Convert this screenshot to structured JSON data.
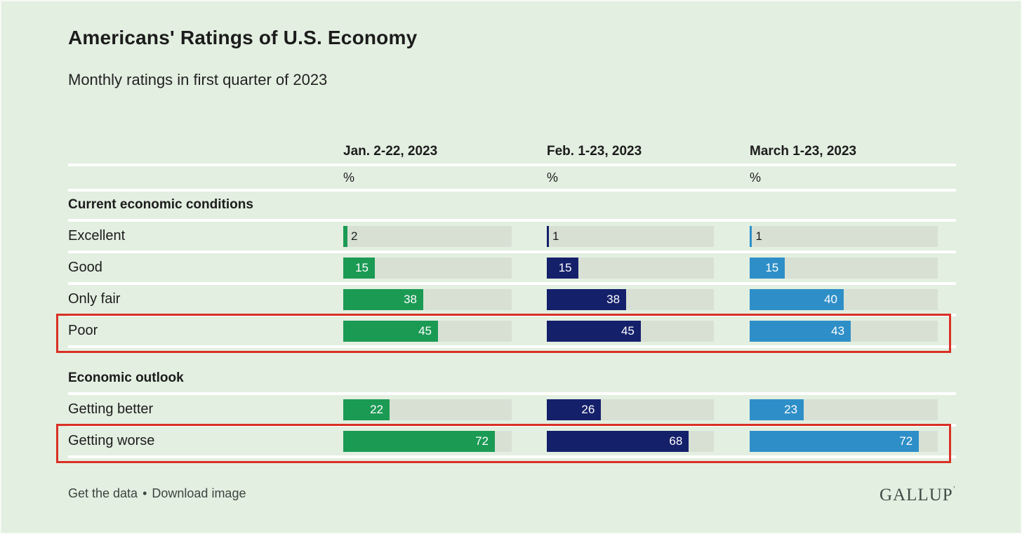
{
  "page": {
    "title": "Americans' Ratings of U.S. Economy",
    "subtitle": "Monthly ratings in first quarter of 2023",
    "background_color": "#e3efe1",
    "track_color": "#d8e0d4",
    "highlight_color": "#d93025"
  },
  "footer": {
    "get_data_label": "Get the data",
    "separator": "•",
    "download_label": "Download image",
    "brand": "GALLUP",
    "brand_mark": "’"
  },
  "chart_data": {
    "type": "bar",
    "title": "Americans' Ratings of U.S. Economy",
    "subtitle": "Monthly ratings in first quarter of 2023",
    "orientation": "horizontal",
    "axis_max": 80,
    "unit": "%",
    "columns": [
      {
        "label": "Jan. 2-22, 2023",
        "unit": "%",
        "color": "#1b9a54"
      },
      {
        "label": "Feb. 1-23, 2023",
        "unit": "%",
        "color": "#14206a"
      },
      {
        "label": "March 1-23, 2023",
        "unit": "%",
        "color": "#2e8fc8"
      }
    ],
    "sections": [
      {
        "header": "Current economic conditions",
        "rows": [
          {
            "label": "Excellent",
            "values": [
              2,
              1,
              1
            ],
            "highlighted": false
          },
          {
            "label": "Good",
            "values": [
              15,
              15,
              15
            ],
            "highlighted": false
          },
          {
            "label": "Only fair",
            "values": [
              38,
              38,
              40
            ],
            "highlighted": false
          },
          {
            "label": "Poor",
            "values": [
              45,
              45,
              43
            ],
            "highlighted": true
          }
        ]
      },
      {
        "header": "Economic outlook",
        "rows": [
          {
            "label": "Getting better",
            "values": [
              22,
              26,
              23
            ],
            "highlighted": false
          },
          {
            "label": "Getting worse",
            "values": [
              72,
              68,
              72
            ],
            "highlighted": true
          }
        ]
      }
    ]
  }
}
